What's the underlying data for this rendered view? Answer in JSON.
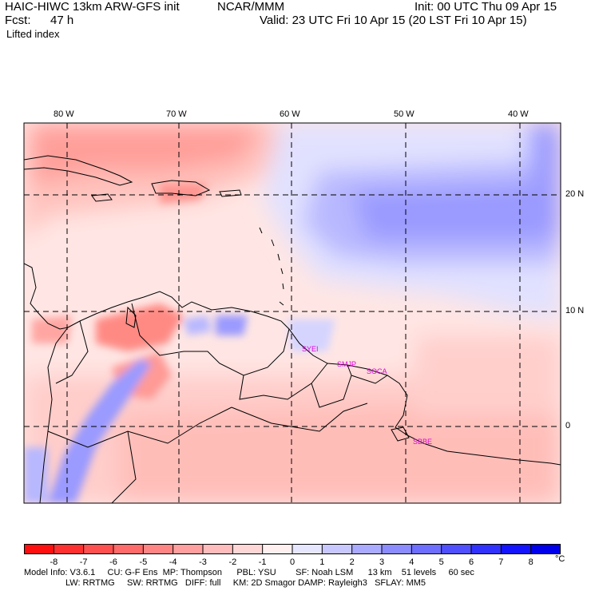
{
  "header": {
    "model": "HAIC-HIWC 13km ARW-GFS init",
    "org": "NCAR/MMM",
    "init": "Init: 00 UTC Thu 09 Apr 15",
    "fcst_label": "Fcst:",
    "fcst_value": "47 h",
    "valid": "Valid: 23 UTC Fri 10 Apr 15 (20 LST Fri 10 Apr 15)",
    "field": "Lifted index"
  },
  "map": {
    "longitude_labels": [
      "80 W",
      "70 W",
      "60 W",
      "50 W",
      "40 W"
    ],
    "latitude_labels": [
      "20 N",
      "10 N",
      "0"
    ],
    "stations": [
      "SYEI",
      "SMJP",
      "SOCA",
      "SBBE"
    ],
    "colors": {
      "border": "#000000",
      "grid": "#000000",
      "station": "#e000e0"
    }
  },
  "colorbar": {
    "tick_labels": [
      "-8",
      "-7",
      "-6",
      "-5",
      "-4",
      "-3",
      "-2",
      "-1",
      "0",
      "1",
      "2",
      "3",
      "4",
      "5",
      "6",
      "7",
      "8"
    ],
    "unit": "°C",
    "colors": [
      "#ff1010",
      "#ff3030",
      "#ff5050",
      "#ff6a6a",
      "#ff8585",
      "#ff9f9f",
      "#ffbcbc",
      "#ffd6d6",
      "#fff0ef",
      "#e6e6ff",
      "#c8c8ff",
      "#aaaaff",
      "#8c8cff",
      "#6e6eff",
      "#5050ff",
      "#3232ff",
      "#1414ff",
      "#0000ea"
    ]
  },
  "footer": {
    "line1": "Model Info: V3.6.1     CU: G-F Ens  MP: Thompson      PBL: YSU        SF: Noah LSM      13 km    51 levels     60 sec",
    "line2": "                 LW: RRTMG     SW: RRTMG   DIFF: full     KM: 2D Smagor DAMP: Rayleigh3   SFLAY: MM5"
  }
}
